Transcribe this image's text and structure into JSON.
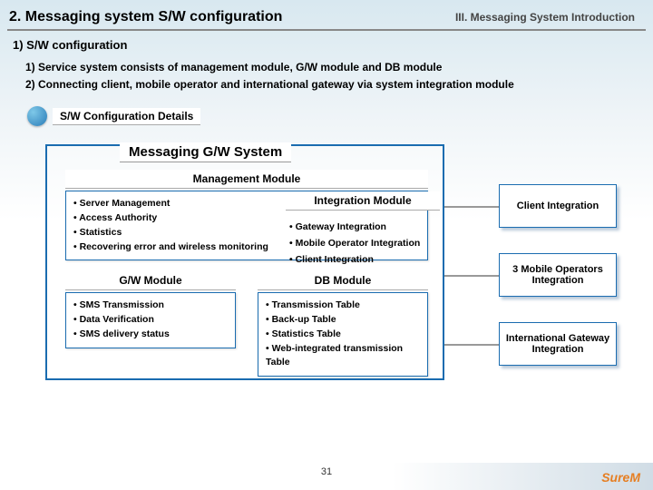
{
  "header": {
    "title": "2. Messaging system S/W configuration",
    "chapter": "III. Messaging System Introduction"
  },
  "section": {
    "heading": "1) S/W configuration"
  },
  "bullets": {
    "b1": "1) Service system consists of management module, G/W module and DB module",
    "b2": "2) Connecting client, mobile operator and international gateway via system integration module"
  },
  "details": {
    "label": "S/W Configuration Details"
  },
  "diagram": {
    "big_title": "Messaging G/W System",
    "mgmt": {
      "head": "Management Module",
      "i1": "• Server Management",
      "i2": "• Access Authority",
      "i3": "• Statistics",
      "i4": "• Recovering error and wireless monitoring"
    },
    "gw": {
      "head": "G/W Module",
      "i1": "• SMS Transmission",
      "i2": "• Data Verification",
      "i3": "• SMS delivery status"
    },
    "db": {
      "head": "DB Module",
      "i1": "• Transmission Table",
      "i2": "• Back-up Table",
      "i3": "• Statistics Table",
      "i4": "• Web-integrated transmission Table"
    },
    "integ": {
      "head": "Integration Module",
      "i1": "• Gateway Integration",
      "i2": "• Mobile Operator Integration",
      "i3": "• Client Integration"
    },
    "side1": "Client Integration",
    "side2": "3 Mobile Operators Integration",
    "side3": "International Gateway Integration"
  },
  "page": "31",
  "brand": {
    "a": "Sure",
    "b": "M"
  },
  "colors": {
    "border": "#1a6cb0",
    "shadow": "rgba(80,120,160,.4)"
  }
}
